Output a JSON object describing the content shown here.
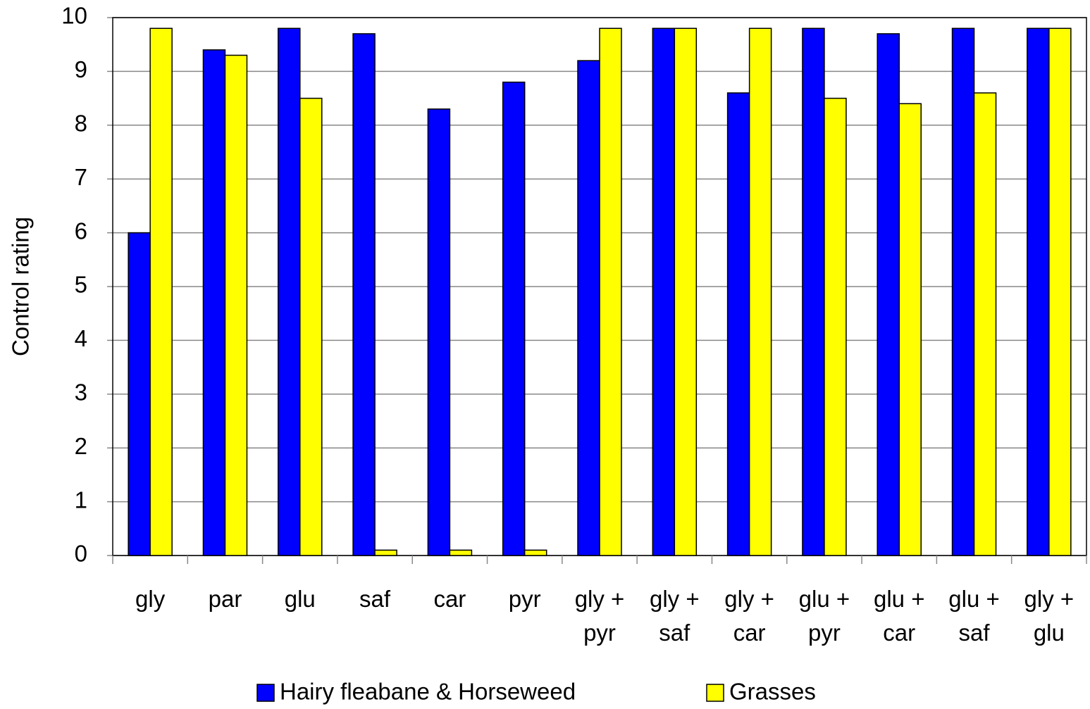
{
  "chart_data": {
    "type": "bar",
    "categories": [
      "gly",
      "par",
      "glu",
      "saf",
      "car",
      "pyr",
      "gly +\npyr",
      "gly +\nsaf",
      "gly +\ncar",
      "glu +\npyr",
      "glu +\ncar",
      "glu +\nsaf",
      "gly +\nglu"
    ],
    "series": [
      {
        "name": "Hairy fleabane & Horseweed",
        "color": "#0000ff",
        "values": [
          6.0,
          9.4,
          9.8,
          9.7,
          8.3,
          8.8,
          9.2,
          9.8,
          8.6,
          9.8,
          9.7,
          9.8,
          9.8
        ]
      },
      {
        "name": "Grasses",
        "color": "#ffff00",
        "values": [
          9.8,
          9.3,
          8.5,
          0.1,
          0.1,
          0.1,
          9.8,
          9.8,
          9.8,
          8.5,
          8.4,
          8.6,
          9.8
        ]
      }
    ],
    "ylabel": "Control rating",
    "ylim": [
      0,
      10
    ],
    "yticks": [
      0,
      1,
      2,
      3,
      4,
      5,
      6,
      7,
      8,
      9,
      10
    ],
    "grid": true,
    "legend": "bottom"
  }
}
